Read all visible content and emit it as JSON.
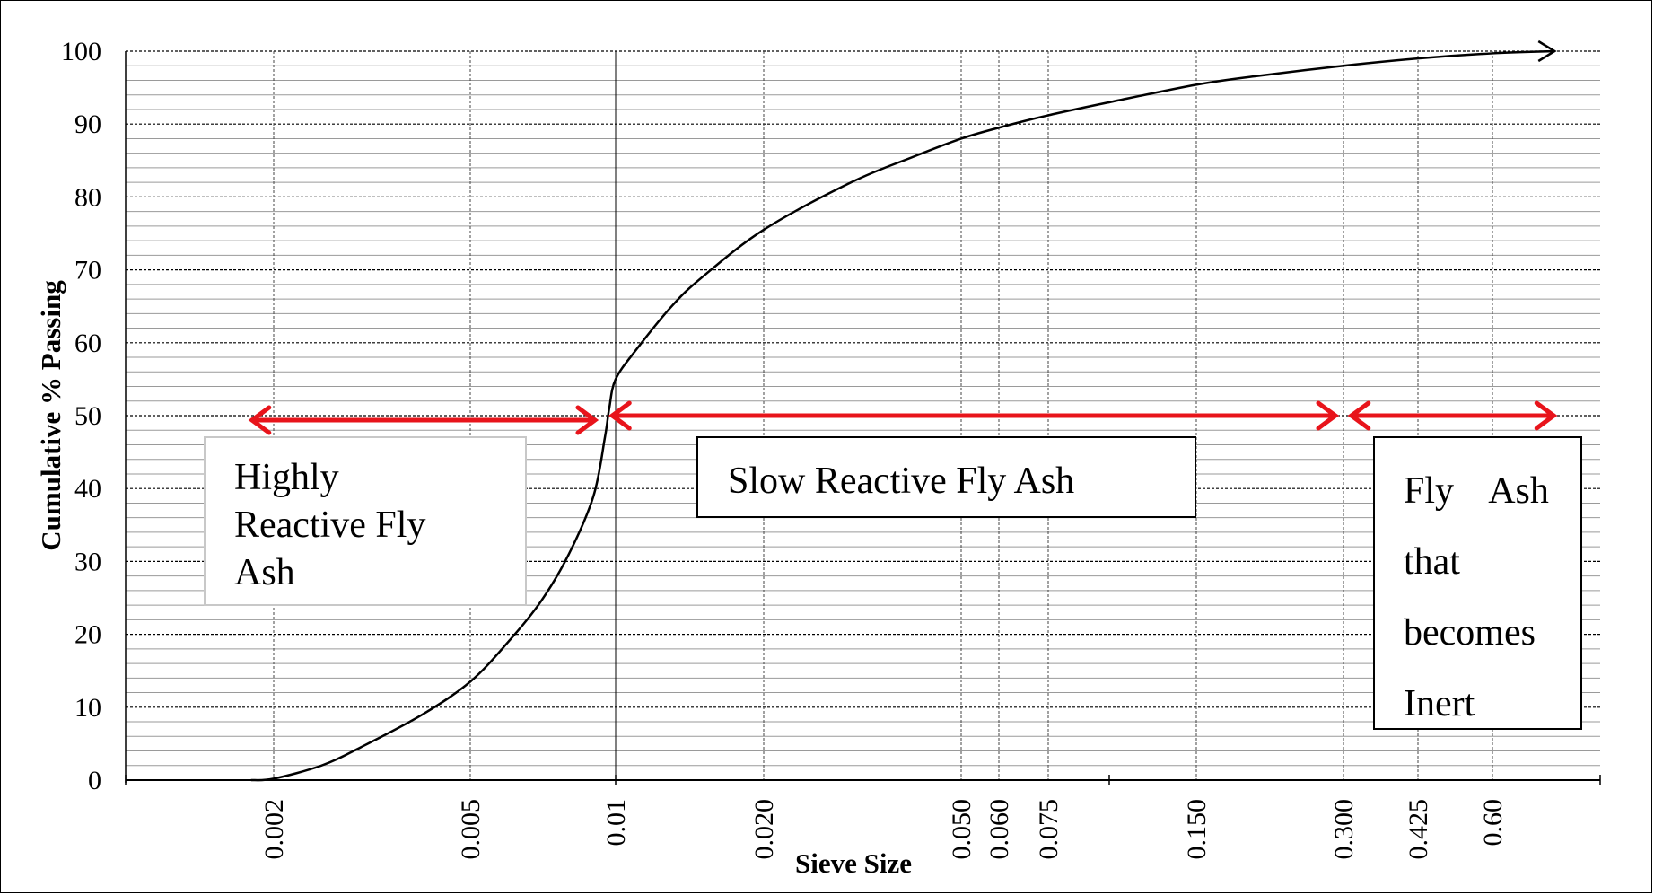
{
  "chart_data": {
    "type": "line",
    "xlabel": "Sieve Size",
    "ylabel": "Cumulative % Passing",
    "x_scale": "log",
    "x_ticks": [
      "0.002",
      "0.005",
      "0.01",
      "0.020",
      "0.050",
      "0.060",
      "0.075",
      "0.150",
      "0.300",
      "0.425",
      "0.60"
    ],
    "y_ticks": [
      "0",
      "10",
      "20",
      "30",
      "40",
      "50",
      "60",
      "70",
      "80",
      "90",
      "100"
    ],
    "ylim": [
      0,
      100
    ],
    "grid": "on",
    "series": [
      {
        "x": [
          0.0018,
          0.002,
          0.0025,
          0.003,
          0.004,
          0.005,
          0.006,
          0.007,
          0.008,
          0.009,
          0.0095,
          0.0097,
          0.01,
          0.011,
          0.013,
          0.015,
          0.02,
          0.03,
          0.04,
          0.05,
          0.06,
          0.075,
          0.1,
          0.15,
          0.2,
          0.3,
          0.425,
          0.6,
          0.8
        ],
        "y": [
          0,
          0.2,
          2,
          4.5,
          9,
          13.5,
          19,
          24.5,
          31,
          39,
          47,
          51,
          55,
          59,
          65,
          69,
          75.5,
          82,
          85.5,
          88,
          89.5,
          91.2,
          93,
          95.4,
          96.6,
          98,
          99,
          99.7,
          100
        ],
        "color": "#000000"
      }
    ],
    "ranges": [
      {
        "label": "Highly Reactive Fly Ash",
        "x_from": 0.0018,
        "x_to": 0.0091,
        "y": 50,
        "color": "#e8141b"
      },
      {
        "label": "Slow Reactive Fly Ash",
        "x_from": 0.0098,
        "x_to": 0.29,
        "y": 50,
        "color": "#e8141b"
      },
      {
        "label": "Fly Ash that becomes Inert",
        "x_from": 0.31,
        "x_to": 0.8,
        "y": 50,
        "color": "#e8141b"
      }
    ],
    "annotations": {
      "highly": [
        "Highly",
        "Reactive Fly",
        "Ash"
      ],
      "slow": [
        "Slow Reactive Fly Ash"
      ],
      "inert": [
        "Fly Ash",
        "that",
        "becomes",
        "Inert"
      ]
    }
  }
}
